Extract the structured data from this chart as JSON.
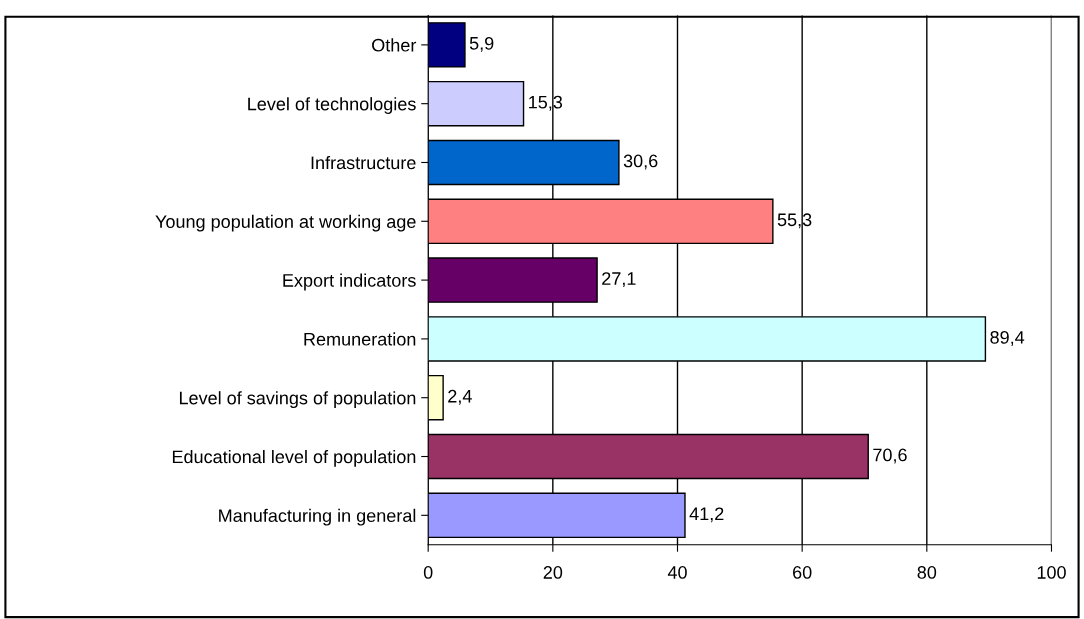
{
  "chart_data": {
    "type": "bar",
    "orientation": "horizontal",
    "categories": [
      "Other",
      "Level of technologies",
      "Infrastructure",
      "Young population at working age",
      "Export indicators",
      "Remuneration",
      "Level of savings of population",
      "Educational level of population",
      "Manufacturing in general"
    ],
    "values": [
      5.9,
      15.3,
      30.6,
      55.3,
      27.1,
      89.4,
      2.4,
      70.6,
      41.2
    ],
    "value_labels": [
      "5,9",
      "15,3",
      "30,6",
      "55,3",
      "27,1",
      "89,4",
      "2,4",
      "70,6",
      "41,2"
    ],
    "colors": [
      "#000080",
      "#ccccff",
      "#0066cc",
      "#ff8080",
      "#660066",
      "#ccffff",
      "#ffffcc",
      "#993366",
      "#9999ff"
    ],
    "xlim": [
      0,
      100
    ],
    "xticks": [
      0,
      20,
      40,
      60,
      80,
      100
    ],
    "grid": "x"
  }
}
